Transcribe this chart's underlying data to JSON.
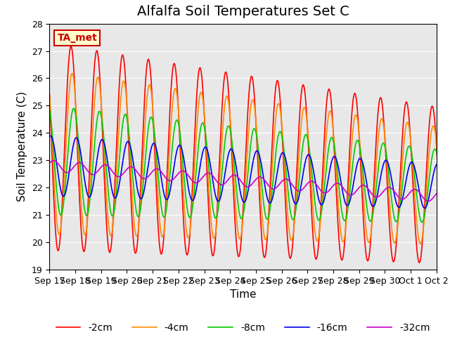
{
  "title": "Alfalfa Soil Temperatures Set C",
  "ylabel": "Soil Temperature (C)",
  "xlabel": "Time",
  "ylim": [
    19.0,
    28.0
  ],
  "yticks": [
    19.0,
    20.0,
    21.0,
    22.0,
    23.0,
    24.0,
    25.0,
    26.0,
    27.0,
    28.0
  ],
  "xtick_labels": [
    "Sep 17",
    "Sep 18",
    "Sep 19",
    "Sep 20",
    "Sep 21",
    "Sep 22",
    "Sep 23",
    "Sep 24",
    "Sep 25",
    "Sep 26",
    "Sep 27",
    "Sep 28",
    "Sep 29",
    "Sep 30",
    "Oct 1",
    "Oct 2"
  ],
  "line_colors": {
    "-2cm": "#FF0000",
    "-4cm": "#FF8C00",
    "-8cm": "#00CC00",
    "-16cm": "#0000EE",
    "-32cm": "#CC00CC"
  },
  "legend_entries": [
    "-2cm",
    "-4cm",
    "-8cm",
    "-16cm",
    "-32cm"
  ],
  "ta_met_label": "TA_met",
  "ta_met_color": "#CC0000",
  "ta_met_bg": "#FFFFCC",
  "background_color": "#E8E8E8",
  "title_fontsize": 14,
  "axis_label_fontsize": 11,
  "tick_fontsize": 9,
  "legend_fontsize": 10,
  "n_days": 16
}
